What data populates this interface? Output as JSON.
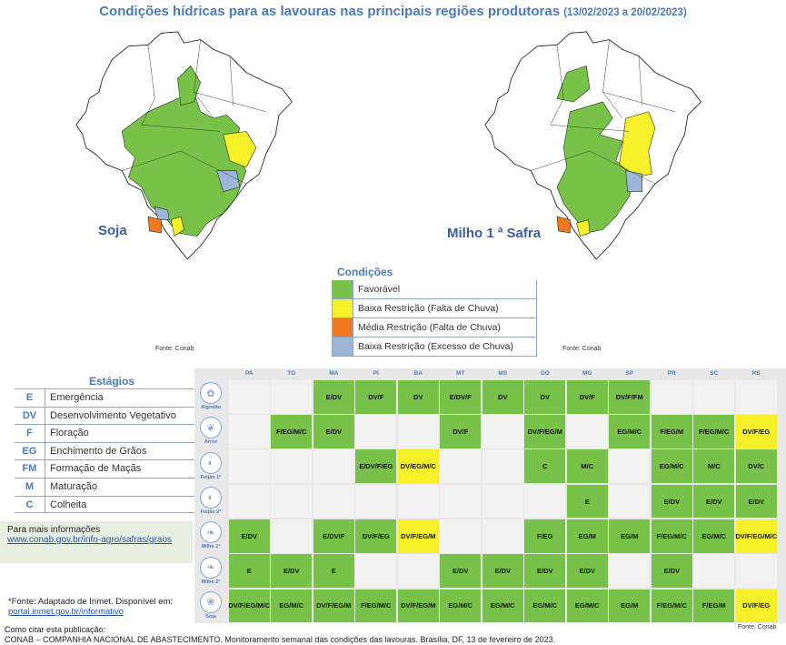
{
  "title": "Condições hídricas para as lavouras nas principais regiões produtoras",
  "period": "(13/02/2023 a 20/02/2023)",
  "maps": {
    "left_label": "Soja",
    "right_label": "Milho 1 ª Safra",
    "source": "Fonte: Conab"
  },
  "colors": {
    "favoravel": "#79c24a",
    "baixa_falta": "#f5f02a",
    "media_falta": "#f07820",
    "baixa_excesso": "#9db6d8",
    "empty": "#ececec",
    "border": "#1a2a18"
  },
  "legend": {
    "title": "Condições",
    "items": [
      {
        "label": "Favorável",
        "color": "#79c24a"
      },
      {
        "label": "Baixa Restrição (Falta de Chuva)",
        "color": "#f5f02a"
      },
      {
        "label": "Média Restrição (Falta de Chuva)",
        "color": "#f07820"
      },
      {
        "label": "Baixa Restrição (Excesso de Chuva)",
        "color": "#9db6d8"
      }
    ]
  },
  "stages": {
    "title": "Estágios",
    "items": [
      {
        "code": "E",
        "name": "Emergência"
      },
      {
        "code": "DV",
        "name": "Desenvolvimento Vegetativo"
      },
      {
        "code": "F",
        "name": "Floração"
      },
      {
        "code": "EG",
        "name": "Enchimento de Grãos"
      },
      {
        "code": "FM",
        "name": "Formação de Maçãs"
      },
      {
        "code": "M",
        "name": "Maturação"
      },
      {
        "code": "C",
        "name": "Colheita"
      }
    ]
  },
  "info": {
    "text": "Para mais informações",
    "link": "www.conab.gov.br/info-agro/safras/graos"
  },
  "footnote": {
    "text": "*Fonte: Adaptado de Inmet. Disponível em:",
    "link": "portal.inmet.gov.br/informativo"
  },
  "cite": {
    "line1": "Como citar esta publicação:",
    "line2": "CONAB – COMPANHIA NACIONAL DE ABASTECIMENTO. Monitoramento semanal das condições das lavouras. Brasília, DF, 13 de fevereiro de 2023."
  },
  "table_source": "Fonte: Conab",
  "table": {
    "states": [
      "PA",
      "TO",
      "MA",
      "PI",
      "BA",
      "MT",
      "MS",
      "GO",
      "MG",
      "SP",
      "PR",
      "SC",
      "RS"
    ],
    "crops": [
      {
        "name": "Algodão",
        "icon": "cotton-icon",
        "cells": [
          null,
          null,
          [
            "E/DV",
            "g"
          ],
          [
            "DV/F",
            "g"
          ],
          [
            "DV",
            "g"
          ],
          [
            "E/DV/F",
            "g"
          ],
          [
            "DV",
            "g"
          ],
          [
            "DV",
            "g"
          ],
          [
            "DV/F",
            "g"
          ],
          [
            "DV/F/FM",
            "g"
          ],
          null,
          null,
          null
        ]
      },
      {
        "name": "Arroz",
        "icon": "rice-icon",
        "cells": [
          null,
          [
            "F/EG/M/C",
            "g"
          ],
          [
            "E/DV",
            "g"
          ],
          null,
          null,
          [
            "DV/F",
            "g"
          ],
          null,
          [
            "DV/F/EG/M",
            "g"
          ],
          null,
          [
            "EG/M/C",
            "g"
          ],
          [
            "F/EG/M",
            "g"
          ],
          [
            "F/EG/M/C",
            "g"
          ],
          [
            "DV/F/EG",
            "y"
          ]
        ]
      },
      {
        "name": "Feijão 1ª",
        "icon": "bean-icon",
        "cells": [
          null,
          null,
          null,
          [
            "E/DV/F/EG",
            "g"
          ],
          [
            "DV/EG/M/C",
            "y"
          ],
          null,
          null,
          [
            "C",
            "g"
          ],
          [
            "M/C",
            "g"
          ],
          null,
          [
            "EG/M/C",
            "g"
          ],
          [
            "M/C",
            "g"
          ],
          [
            "DV/C",
            "g"
          ]
        ]
      },
      {
        "name": "Feijão 2ª",
        "icon": "bean-icon",
        "cells": [
          null,
          null,
          null,
          null,
          null,
          null,
          null,
          null,
          [
            "E",
            "g"
          ],
          null,
          [
            "E/DV",
            "g"
          ],
          [
            "E/DV",
            "g"
          ],
          [
            "E/DV",
            "g"
          ]
        ]
      },
      {
        "name": "Milho 1ª",
        "icon": "corn-icon",
        "cells": [
          [
            "E/DV",
            "g"
          ],
          null,
          [
            "E/DV/F",
            "g"
          ],
          [
            "DV/F/EG",
            "g"
          ],
          [
            "DV/F/EG/M",
            "y"
          ],
          null,
          null,
          [
            "F/EG",
            "g"
          ],
          [
            "EG/M",
            "g"
          ],
          [
            "EG/M",
            "g"
          ],
          [
            "F/EG/M/C",
            "g"
          ],
          [
            "EG/M/C",
            "g"
          ],
          [
            "DV/F/EG/M/C",
            "y"
          ]
        ]
      },
      {
        "name": "Milho 2ª",
        "icon": "corn-icon",
        "cells": [
          [
            "E",
            "g"
          ],
          [
            "E/DV",
            "g"
          ],
          [
            "E",
            "g"
          ],
          null,
          null,
          [
            "E/DV",
            "g"
          ],
          [
            "E/DV",
            "g"
          ],
          [
            "E/DV",
            "g"
          ],
          [
            "E/DV",
            "g"
          ],
          null,
          [
            "E/DV",
            "g"
          ],
          null,
          null
        ]
      },
      {
        "name": "Soja",
        "icon": "soy-icon",
        "cells": [
          [
            "DV/F/EG/M/C",
            "g"
          ],
          [
            "EG/M/C",
            "g"
          ],
          [
            "DV/F/EG/M",
            "g"
          ],
          [
            "F/EG/M/C",
            "g"
          ],
          [
            "DV/F/EG/M",
            "g"
          ],
          [
            "EG/M/C",
            "g"
          ],
          [
            "EG/M/C",
            "g"
          ],
          [
            "EG/M/C",
            "g"
          ],
          [
            "EG/M/C",
            "g"
          ],
          [
            "EG/M",
            "g"
          ],
          [
            "F/EG/M/C",
            "g"
          ],
          [
            "F/EG/M",
            "g"
          ],
          [
            "DV/F/EG",
            "y"
          ]
        ]
      }
    ]
  }
}
